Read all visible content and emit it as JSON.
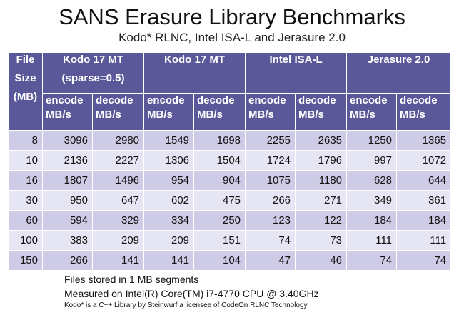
{
  "title": "SANS Erasure Library Benchmarks",
  "subtitle": "Kodo* RLNC, Intel ISA-L and Jerasure 2.0",
  "table": {
    "corner": [
      "File",
      "Size",
      "(MB)"
    ],
    "groups": [
      {
        "line1": "Kodo 17 MT",
        "line2": "(sparse=0.5)"
      },
      {
        "line1": "Kodo 17 MT",
        "line2": ""
      },
      {
        "line1": "Intel ISA-L",
        "line2": ""
      },
      {
        "line1": "Jerasure 2.0",
        "line2": ""
      }
    ],
    "subheaders": [
      {
        "op": "encode",
        "unit": "MB/s"
      },
      {
        "op": "decode",
        "unit": "MB/s"
      }
    ],
    "rows": [
      [
        "8",
        "3096",
        "2980",
        "1549",
        "1698",
        "2255",
        "2635",
        "1250",
        "1365"
      ],
      [
        "10",
        "2136",
        "2227",
        "1306",
        "1504",
        "1724",
        "1796",
        "997",
        "1072"
      ],
      [
        "16",
        "1807",
        "1496",
        "954",
        "904",
        "1075",
        "1180",
        "628",
        "644"
      ],
      [
        "30",
        "950",
        "647",
        "602",
        "475",
        "266",
        "271",
        "349",
        "361"
      ],
      [
        "60",
        "594",
        "329",
        "334",
        "250",
        "123",
        "122",
        "184",
        "184"
      ],
      [
        "100",
        "383",
        "209",
        "209",
        "151",
        "74",
        "73",
        "111",
        "111"
      ],
      [
        "150",
        "266",
        "141",
        "141",
        "104",
        "47",
        "46",
        "74",
        "74"
      ]
    ]
  },
  "notes": {
    "segments": "Files stored in 1 MB segments",
    "cpu": "Measured on Intel(R) Core(TM) i7-4770 CPU @ 3.40GHz",
    "license": "Kodo* is a C++ Library by Steinwurf a licensee of CodeOn RLNC Technology"
  }
}
